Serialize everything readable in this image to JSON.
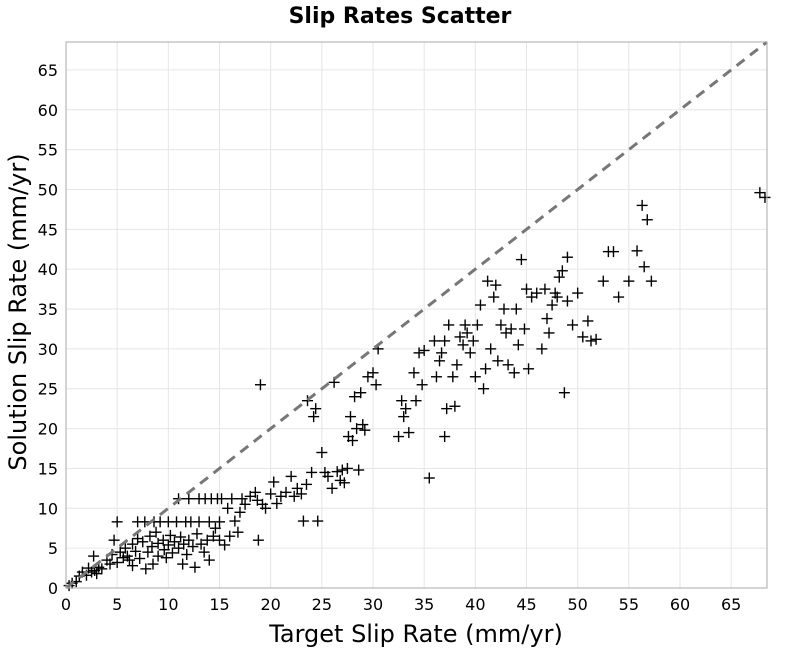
{
  "chart_data": {
    "type": "scatter",
    "title": "Slip Rates Scatter",
    "xlabel": "Target Slip Rate (mm/yr)",
    "ylabel": "Solution Slip Rate (mm/yr)",
    "xlim": [
      0,
      68.5
    ],
    "ylim": [
      0,
      68.5
    ],
    "xticks": [
      "0",
      "5",
      "10",
      "15",
      "20",
      "25",
      "30",
      "35",
      "40",
      "45",
      "50",
      "55",
      "60",
      "65"
    ],
    "yticks": [
      "0",
      "5",
      "10",
      "15",
      "20",
      "25",
      "30",
      "35",
      "40",
      "45",
      "50",
      "55",
      "60",
      "65"
    ],
    "grid": true,
    "marker": "plus",
    "reference_line": {
      "style": "dashed",
      "from": [
        0,
        0
      ],
      "to": [
        68.5,
        68.5
      ],
      "color": "#777777"
    },
    "points": [
      [
        0.3,
        0.3
      ],
      [
        0.6,
        0.6
      ],
      [
        1.0,
        0.8
      ],
      [
        1.3,
        1.5
      ],
      [
        1.6,
        2.0
      ],
      [
        2.0,
        1.6
      ],
      [
        2.2,
        2.5
      ],
      [
        2.5,
        2.0
      ],
      [
        2.8,
        2.2
      ],
      [
        3.0,
        1.8
      ],
      [
        3.2,
        2.6
      ],
      [
        2.7,
        4.0
      ],
      [
        3.5,
        2.4
      ],
      [
        4.0,
        3.5
      ],
      [
        4.3,
        3.0
      ],
      [
        4.5,
        4.2
      ],
      [
        4.7,
        6.0
      ],
      [
        5.0,
        3.2
      ],
      [
        5.0,
        8.3
      ],
      [
        5.3,
        4.5
      ],
      [
        5.6,
        3.8
      ],
      [
        5.8,
        5.0
      ],
      [
        6.0,
        4.0
      ],
      [
        6.2,
        3.5
      ],
      [
        6.5,
        2.8
      ],
      [
        6.5,
        5.5
      ],
      [
        6.8,
        4.6
      ],
      [
        7.0,
        6.2
      ],
      [
        7.0,
        8.3
      ],
      [
        7.2,
        3.7
      ],
      [
        7.5,
        5.8
      ],
      [
        7.7,
        8.3
      ],
      [
        7.8,
        2.4
      ],
      [
        8.0,
        4.5
      ],
      [
        8.2,
        6.5
      ],
      [
        8.4,
        5.2
      ],
      [
        8.5,
        3.0
      ],
      [
        8.6,
        8.3
      ],
      [
        8.8,
        7.0
      ],
      [
        9.0,
        4.0
      ],
      [
        9.0,
        5.6
      ],
      [
        9.2,
        8.3
      ],
      [
        9.5,
        6.0
      ],
      [
        9.6,
        4.8
      ],
      [
        9.8,
        3.8
      ],
      [
        10.0,
        5.4
      ],
      [
        10.0,
        8.3
      ],
      [
        10.2,
        6.6
      ],
      [
        10.4,
        4.4
      ],
      [
        10.6,
        5.8
      ],
      [
        10.8,
        8.3
      ],
      [
        11.0,
        5.0
      ],
      [
        11.0,
        11.2
      ],
      [
        11.2,
        6.4
      ],
      [
        11.4,
        3.0
      ],
      [
        11.5,
        5.5
      ],
      [
        11.7,
        8.3
      ],
      [
        11.8,
        4.2
      ],
      [
        12.0,
        6.0
      ],
      [
        12.0,
        11.2
      ],
      [
        12.2,
        8.3
      ],
      [
        12.4,
        5.2
      ],
      [
        12.6,
        2.6
      ],
      [
        12.8,
        6.8
      ],
      [
        13.0,
        8.3
      ],
      [
        13.0,
        11.2
      ],
      [
        13.2,
        5.5
      ],
      [
        13.5,
        4.5
      ],
      [
        13.6,
        11.2
      ],
      [
        13.8,
        6.0
      ],
      [
        14.0,
        3.5
      ],
      [
        14.0,
        8.3
      ],
      [
        14.2,
        11.2
      ],
      [
        14.4,
        6.5
      ],
      [
        14.6,
        7.5
      ],
      [
        14.8,
        11.2
      ],
      [
        15.0,
        6.0
      ],
      [
        15.0,
        8.3
      ],
      [
        15.2,
        11.2
      ],
      [
        15.5,
        5.4
      ],
      [
        15.8,
        10.0
      ],
      [
        16.0,
        6.5
      ],
      [
        16.2,
        11.2
      ],
      [
        16.5,
        8.4
      ],
      [
        16.8,
        7.0
      ],
      [
        17.0,
        9.5
      ],
      [
        17.2,
        11.2
      ],
      [
        17.5,
        10.5
      ],
      [
        18.0,
        11.5
      ],
      [
        18.5,
        12.0
      ],
      [
        18.7,
        11.0
      ],
      [
        18.8,
        6.0
      ],
      [
        19.0,
        25.5
      ],
      [
        19.2,
        10.5
      ],
      [
        19.5,
        10.0
      ],
      [
        20.0,
        11.8
      ],
      [
        20.3,
        13.3
      ],
      [
        20.6,
        10.6
      ],
      [
        21.0,
        11.5
      ],
      [
        21.5,
        12.0
      ],
      [
        22.0,
        14.0
      ],
      [
        22.3,
        11.5
      ],
      [
        22.6,
        12.5
      ],
      [
        23.0,
        11.8
      ],
      [
        23.2,
        8.4
      ],
      [
        23.5,
        13.0
      ],
      [
        23.6,
        23.5
      ],
      [
        24.0,
        14.5
      ],
      [
        24.2,
        21.5
      ],
      [
        24.4,
        22.5
      ],
      [
        24.6,
        8.4
      ],
      [
        25.0,
        17.0
      ],
      [
        25.3,
        14.5
      ],
      [
        25.6,
        14.0
      ],
      [
        26.0,
        12.5
      ],
      [
        26.2,
        25.8
      ],
      [
        26.5,
        14.6
      ],
      [
        26.8,
        13.5
      ],
      [
        27.0,
        14.8
      ],
      [
        27.2,
        13.2
      ],
      [
        27.5,
        15.0
      ],
      [
        27.6,
        19.0
      ],
      [
        27.8,
        21.5
      ],
      [
        28.0,
        18.5
      ],
      [
        28.2,
        24.0
      ],
      [
        28.4,
        20.0
      ],
      [
        28.6,
        14.8
      ],
      [
        28.8,
        24.5
      ],
      [
        29.0,
        20.5
      ],
      [
        29.2,
        19.8
      ],
      [
        29.5,
        26.5
      ],
      [
        30.0,
        27.0
      ],
      [
        30.3,
        25.5
      ],
      [
        30.5,
        30.0
      ],
      [
        32.5,
        19.0
      ],
      [
        32.8,
        23.5
      ],
      [
        33.0,
        21.5
      ],
      [
        33.2,
        22.5
      ],
      [
        33.5,
        19.5
      ],
      [
        34.0,
        27.0
      ],
      [
        34.2,
        23.5
      ],
      [
        34.5,
        29.5
      ],
      [
        34.8,
        25.5
      ],
      [
        35.0,
        29.8
      ],
      [
        35.5,
        13.8
      ],
      [
        36.0,
        31.0
      ],
      [
        36.2,
        26.5
      ],
      [
        36.5,
        28.5
      ],
      [
        36.7,
        29.5
      ],
      [
        37.0,
        31.0
      ],
      [
        37.0,
        19.0
      ],
      [
        37.2,
        22.5
      ],
      [
        37.4,
        33.0
      ],
      [
        37.8,
        26.5
      ],
      [
        38.0,
        22.8
      ],
      [
        38.2,
        28.0
      ],
      [
        38.5,
        31.5
      ],
      [
        38.8,
        30.5
      ],
      [
        39.0,
        33.0
      ],
      [
        39.2,
        32.0
      ],
      [
        39.5,
        29.5
      ],
      [
        39.8,
        31.0
      ],
      [
        40.0,
        26.5
      ],
      [
        40.2,
        33.0
      ],
      [
        40.5,
        35.5
      ],
      [
        40.8,
        25.0
      ],
      [
        41.0,
        27.5
      ],
      [
        41.2,
        38.5
      ],
      [
        41.5,
        30.0
      ],
      [
        41.8,
        36.5
      ],
      [
        42.0,
        38.0
      ],
      [
        42.2,
        28.5
      ],
      [
        42.5,
        33.0
      ],
      [
        42.8,
        35.0
      ],
      [
        43.0,
        32.0
      ],
      [
        43.2,
        28.0
      ],
      [
        43.5,
        32.5
      ],
      [
        43.8,
        27.0
      ],
      [
        44.0,
        35.0
      ],
      [
        44.2,
        30.5
      ],
      [
        44.5,
        41.2
      ],
      [
        44.8,
        32.5
      ],
      [
        45.0,
        37.5
      ],
      [
        45.2,
        27.5
      ],
      [
        45.5,
        36.5
      ],
      [
        46.0,
        37.0
      ],
      [
        46.5,
        30.0
      ],
      [
        46.8,
        37.5
      ],
      [
        47.0,
        33.8
      ],
      [
        47.2,
        32.0
      ],
      [
        47.5,
        35.5
      ],
      [
        47.8,
        37.0
      ],
      [
        48.0,
        36.5
      ],
      [
        48.2,
        39.0
      ],
      [
        48.5,
        39.8
      ],
      [
        48.7,
        24.5
      ],
      [
        49.0,
        36.0
      ],
      [
        49.0,
        41.5
      ],
      [
        49.5,
        33.0
      ],
      [
        50.0,
        37.0
      ],
      [
        50.5,
        31.5
      ],
      [
        51.0,
        33.5
      ],
      [
        51.3,
        31.0
      ],
      [
        51.8,
        31.2
      ],
      [
        52.5,
        38.5
      ],
      [
        53.0,
        42.2
      ],
      [
        53.5,
        42.2
      ],
      [
        54.0,
        36.5
      ],
      [
        55.0,
        38.5
      ],
      [
        55.8,
        42.3
      ],
      [
        56.3,
        48.0
      ],
      [
        56.5,
        40.3
      ],
      [
        56.8,
        46.2
      ],
      [
        57.2,
        38.5
      ],
      [
        67.8,
        49.6
      ],
      [
        68.3,
        49.0
      ]
    ]
  }
}
